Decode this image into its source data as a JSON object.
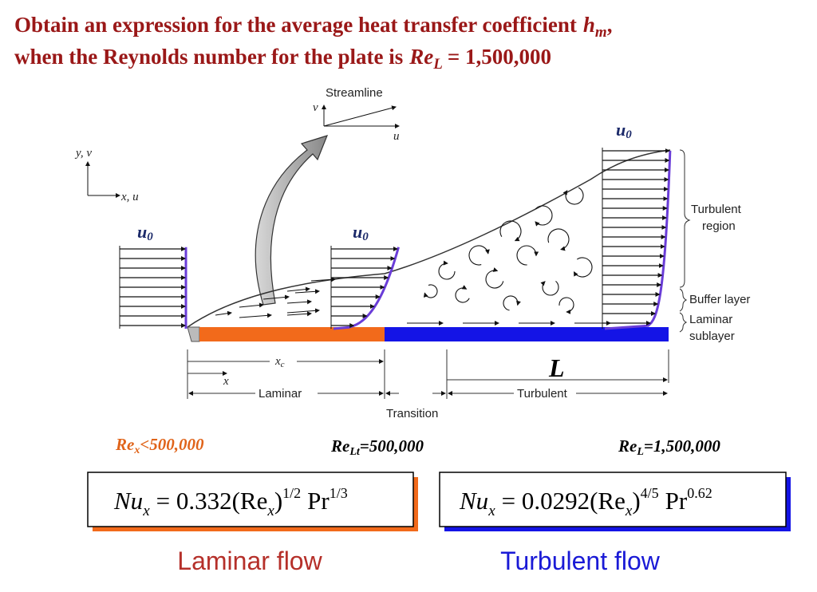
{
  "title": {
    "line1": "Obtain an expression for the average heat transfer coefficient",
    "line1_symbol": "h",
    "line1_subscript": "m",
    "line1_end": ",",
    "line2": "when the Reynolds number for the plate is",
    "line2_symbol": "Re",
    "line2_subscript": "L",
    "line2_end": "= 1,500,000"
  },
  "diagram": {
    "streamline": "Streamline",
    "streamline_v": "v",
    "streamline_u": "u",
    "axis_y": "y, v",
    "axis_x": "x, u",
    "free_stream": [
      "u",
      "u",
      "u"
    ],
    "free_stream_subscript": "0",
    "turbulent_region": [
      "Turbulent",
      "region"
    ],
    "buffer_layer": "Buffer layer",
    "laminar_sublayer": [
      "Laminar",
      "sublayer"
    ],
    "xc": "x",
    "xc_subscript": "c",
    "x": "x",
    "L": "L",
    "laminar": "Laminar",
    "turbulent": "Turbulent",
    "transition": "Transition"
  },
  "conditions": {
    "laminar": {
      "symbol": "Re",
      "subscript": "x",
      "text": "<500,000"
    },
    "transition": {
      "symbol": "Re",
      "subscript": "Lt",
      "text": "=500,000"
    },
    "plate": {
      "symbol": "Re",
      "subscript": "L",
      "text": "=1,500,000"
    }
  },
  "laminar_equation": {
    "lhs": "Nu",
    "lhs_subscript": "x",
    "middle": "= 0.332(Re",
    "re_subscript": "x",
    "close": ")",
    "exponent": "1/2",
    "pr": "Pr",
    "pr_exponent": "1/3"
  },
  "turbulent_equation": {
    "lhs": "Nu",
    "lhs_subscript": "x",
    "middle": "= 0.0292(Re",
    "re_subscript": "x",
    "close": ")",
    "exponent": "4/5",
    "pr": "Pr",
    "pr_exponent": "0.62"
  },
  "captions": {
    "laminar": "Laminar flow",
    "turbulent": "Turbulent flow"
  }
}
